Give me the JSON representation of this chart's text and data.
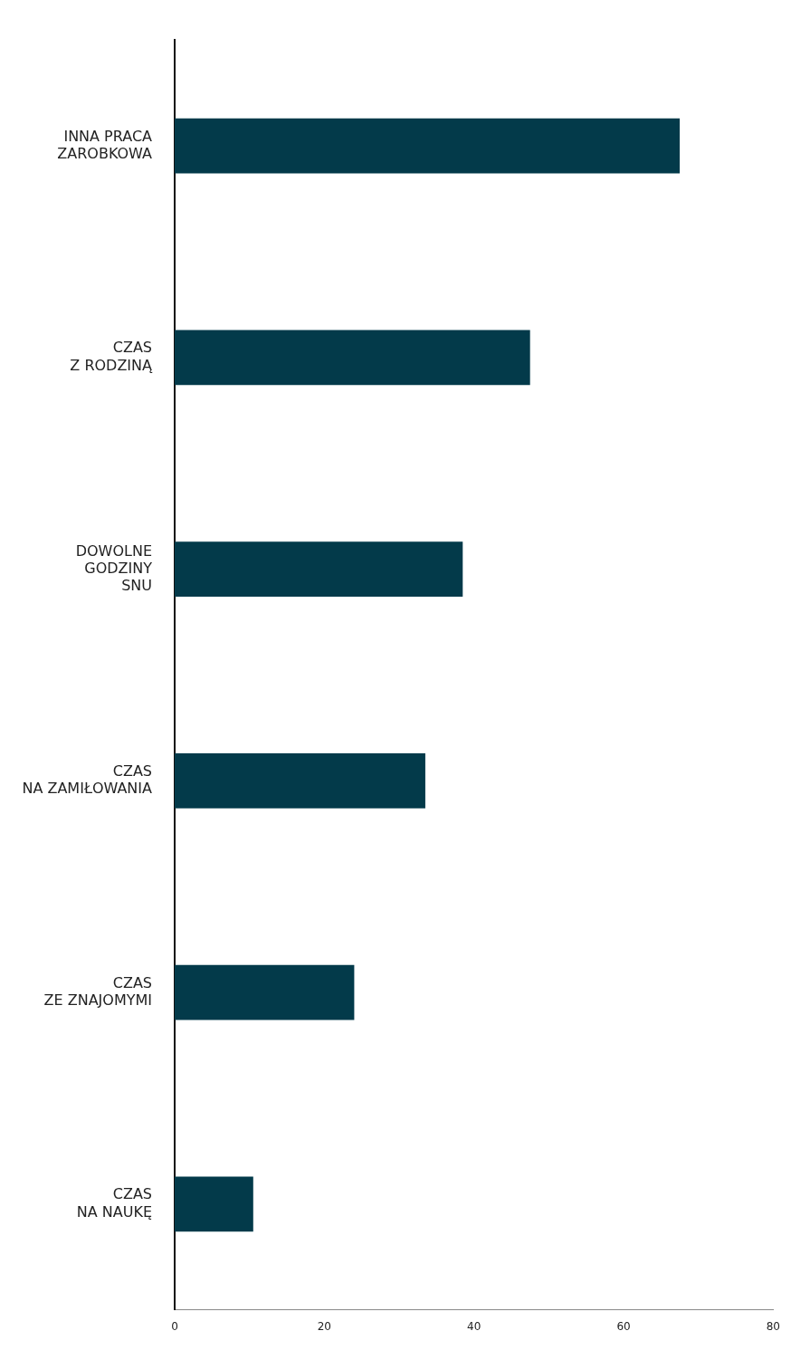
{
  "chart_data": {
    "type": "bar",
    "orientation": "horizontal",
    "categories": [
      "INNA PRACA\nZAROBKOWA",
      "CZAS\nZ RODZINĄ",
      "DOWOLNE\nGODZINY\nSNU",
      "CZAS\nNA ZAMIŁOWANIA",
      "CZAS\nZE ZNAJOMYMI",
      "CZAS\nNA NAUKĘ"
    ],
    "values": [
      67.5,
      47.5,
      38.5,
      33.5,
      24,
      10.5
    ],
    "color": "#033a4a",
    "xlim": [
      0,
      80
    ],
    "xticks": [
      0,
      20,
      40,
      60,
      80
    ],
    "grid": false,
    "legend": false
  }
}
